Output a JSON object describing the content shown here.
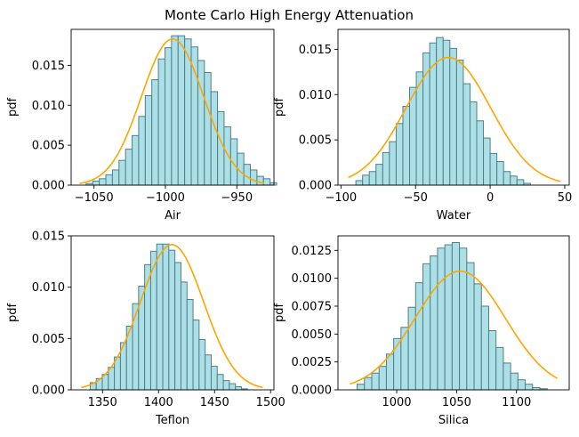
{
  "figure": {
    "title": "Monte Carlo High Energy Attenuation"
  },
  "colors": {
    "bar_fill": "#ade0e6",
    "bar_edge": "#4f7f88",
    "curve": "#ffa500",
    "axis": "#000000"
  },
  "chart_data": [
    {
      "type": "bar",
      "title": "",
      "xlabel": "Air",
      "ylabel": "pdf",
      "xlim": [
        -1066,
        -924
      ],
      "ylim": [
        0,
        0.0195
      ],
      "xticks": [
        -1050,
        -1000,
        -950
      ],
      "xtick_labels": [
        "−1050",
        "−1000",
        "−950"
      ],
      "yticks": [
        0,
        0.005,
        0.01,
        0.015
      ],
      "ytick_labels": [
        "0.000",
        "0.005",
        "0.010",
        "0.015"
      ],
      "bins": {
        "start": -1055.5,
        "width": 4.6,
        "values": [
          0.0002,
          0.0005,
          0.0008,
          0.0013,
          0.0019,
          0.0031,
          0.0045,
          0.0062,
          0.0086,
          0.0112,
          0.0132,
          0.0158,
          0.0172,
          0.0187,
          0.0187,
          0.0183,
          0.0173,
          0.0156,
          0.0141,
          0.0117,
          0.0092,
          0.0073,
          0.0058,
          0.004,
          0.0026,
          0.0019,
          0.0011,
          0.0008,
          0.0003
        ]
      },
      "curve": {
        "mean": -995,
        "std": 21.8,
        "x_range": [
          -1060,
          -931
        ]
      }
    },
    {
      "type": "bar",
      "title": "",
      "xlabel": "Water",
      "ylabel": "pdf",
      "xlim": [
        -102,
        53
      ],
      "ylim": [
        0,
        0.0172
      ],
      "xticks": [
        -100,
        -50,
        0,
        50
      ],
      "xtick_labels": [
        "−100",
        "−50",
        "0",
        "50"
      ],
      "yticks": [
        0,
        0.005,
        0.01,
        0.015
      ],
      "ytick_labels": [
        "0.000",
        "0.005",
        "0.010",
        "0.015"
      ],
      "bins": {
        "start": -90,
        "width": 4.5,
        "values": [
          0.0005,
          0.0011,
          0.0015,
          0.0023,
          0.0036,
          0.0048,
          0.0068,
          0.0087,
          0.0108,
          0.0125,
          0.0146,
          0.0157,
          0.0163,
          0.016,
          0.0151,
          0.0138,
          0.0112,
          0.0092,
          0.0071,
          0.0052,
          0.0035,
          0.0026,
          0.0015,
          0.001,
          0.0006,
          0.0002
        ]
      },
      "curve": {
        "mean": -28,
        "std": 28.3,
        "x_range": [
          -95,
          47
        ]
      }
    },
    {
      "type": "bar",
      "title": "",
      "xlabel": "Teflon",
      "ylabel": "pdf",
      "xlim": [
        1322,
        1503
      ],
      "ylim": [
        0,
        0.015
      ],
      "xticks": [
        1350,
        1400,
        1450,
        1500
      ],
      "xtick_labels": [
        "1350",
        "1400",
        "1450",
        "1500"
      ],
      "yticks": [
        0,
        0.005,
        0.01,
        0.015
      ],
      "ytick_labels": [
        "0.000",
        "0.005",
        "0.010",
        "0.015"
      ],
      "bins": {
        "start": 1339,
        "width": 5.4,
        "values": [
          0.0007,
          0.0011,
          0.0015,
          0.0022,
          0.0032,
          0.0046,
          0.0062,
          0.0084,
          0.0101,
          0.0122,
          0.0135,
          0.0142,
          0.0142,
          0.0136,
          0.0124,
          0.0105,
          0.0088,
          0.0068,
          0.0049,
          0.0034,
          0.0023,
          0.0015,
          0.0009,
          0.0006,
          0.0003,
          0.0001
        ]
      },
      "curve": {
        "mean": 1412,
        "std": 28.2,
        "x_range": [
          1331,
          1493
        ]
      }
    },
    {
      "type": "bar",
      "title": "",
      "xlabel": "Silica",
      "ylabel": "pdf",
      "xlim": [
        951,
        1144
      ],
      "ylim": [
        0,
        0.0138
      ],
      "xticks": [
        1000,
        1050,
        1100
      ],
      "xtick_labels": [
        "1000",
        "1050",
        "1100"
      ],
      "yticks": [
        0,
        0.0025,
        0.005,
        0.0075,
        0.01,
        0.0125
      ],
      "ytick_labels": [
        "0.0000",
        "0.0025",
        "0.0050",
        "0.0075",
        "0.0100",
        "0.0125"
      ],
      "bins": {
        "start": 967,
        "width": 6.1,
        "values": [
          0.0005,
          0.0011,
          0.0015,
          0.0021,
          0.0032,
          0.0046,
          0.0056,
          0.0074,
          0.0096,
          0.0113,
          0.012,
          0.0127,
          0.013,
          0.0132,
          0.0127,
          0.0114,
          0.0095,
          0.0075,
          0.0053,
          0.0038,
          0.0024,
          0.0015,
          0.0009,
          0.0005,
          0.0002,
          0.0001
        ]
      },
      "curve": {
        "mean": 1053,
        "std": 37.5,
        "x_range": [
          961,
          1134
        ]
      }
    }
  ]
}
